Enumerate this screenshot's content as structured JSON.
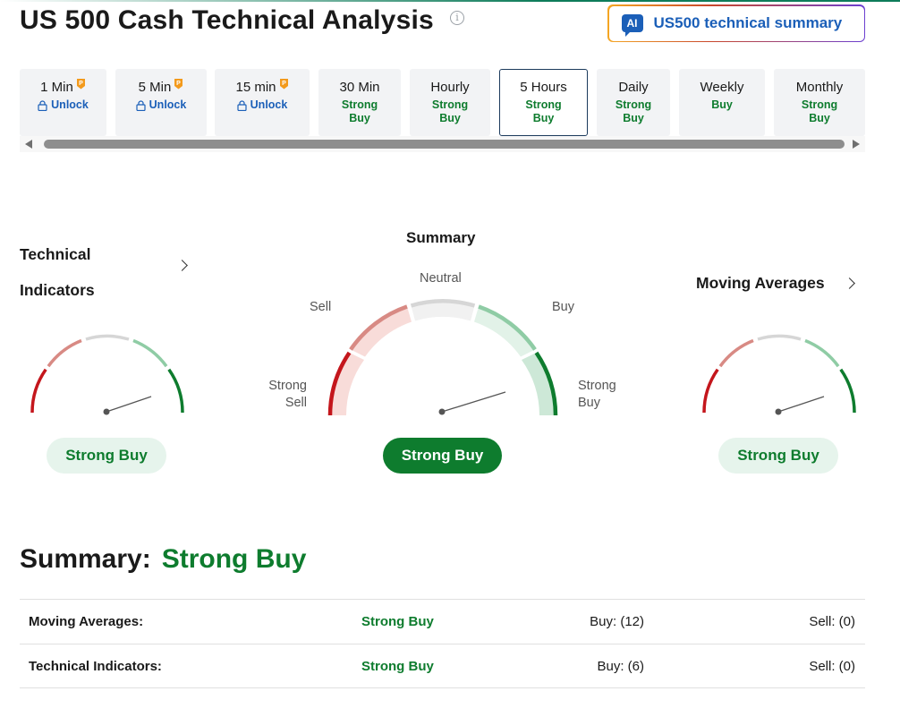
{
  "page": {
    "title": "US 500 Cash Technical Analysis",
    "info_icon": "info-icon",
    "ai_button": {
      "badge": "AI",
      "label": "US500 technical summary"
    }
  },
  "timeframes": [
    {
      "name": "1 Min",
      "status": "Unlock",
      "locked": true
    },
    {
      "name": "5 Min",
      "status": "Unlock",
      "locked": true
    },
    {
      "name": "15 min",
      "status": "Unlock",
      "locked": true
    },
    {
      "name": "30 Min",
      "status": "Strong Buy",
      "locked": false
    },
    {
      "name": "Hourly",
      "status": "Strong Buy",
      "locked": false
    },
    {
      "name": "5 Hours",
      "status": "Strong Buy",
      "locked": false,
      "active": true
    },
    {
      "name": "Daily",
      "status": "Strong Buy",
      "locked": false
    },
    {
      "name": "Weekly",
      "status": "Buy",
      "locked": false
    },
    {
      "name": "Monthly",
      "status": "Strong Buy",
      "locked": false
    }
  ],
  "technical_indicators": {
    "title": "Technical Indicators",
    "result": "Strong Buy"
  },
  "summary_gauge": {
    "title": "Summary",
    "labels": {
      "strong_sell": "Strong Sell",
      "sell": "Sell",
      "neutral": "Neutral",
      "buy": "Buy",
      "strong_buy": "Strong Buy"
    },
    "result": "Strong Buy"
  },
  "moving_averages": {
    "title": "Moving Averages",
    "result": "Strong Buy"
  },
  "summary": {
    "label": "Summary:",
    "value": "Strong Buy",
    "rows": [
      {
        "name": "Moving Averages:",
        "signal": "Strong Buy",
        "buy": "Buy: (12)",
        "sell": "Sell: (0)"
      },
      {
        "name": "Technical Indicators:",
        "signal": "Strong Buy",
        "buy": "Buy: (6)",
        "sell": "Sell: (0)"
      }
    ]
  },
  "colors": {
    "strong_sell": "#c4161c",
    "sell": "#d88a84",
    "neutral": "#d6d6d6",
    "buy": "#8fcca5",
    "strong_buy": "#0e7c2e",
    "link": "#1b5fb8"
  }
}
